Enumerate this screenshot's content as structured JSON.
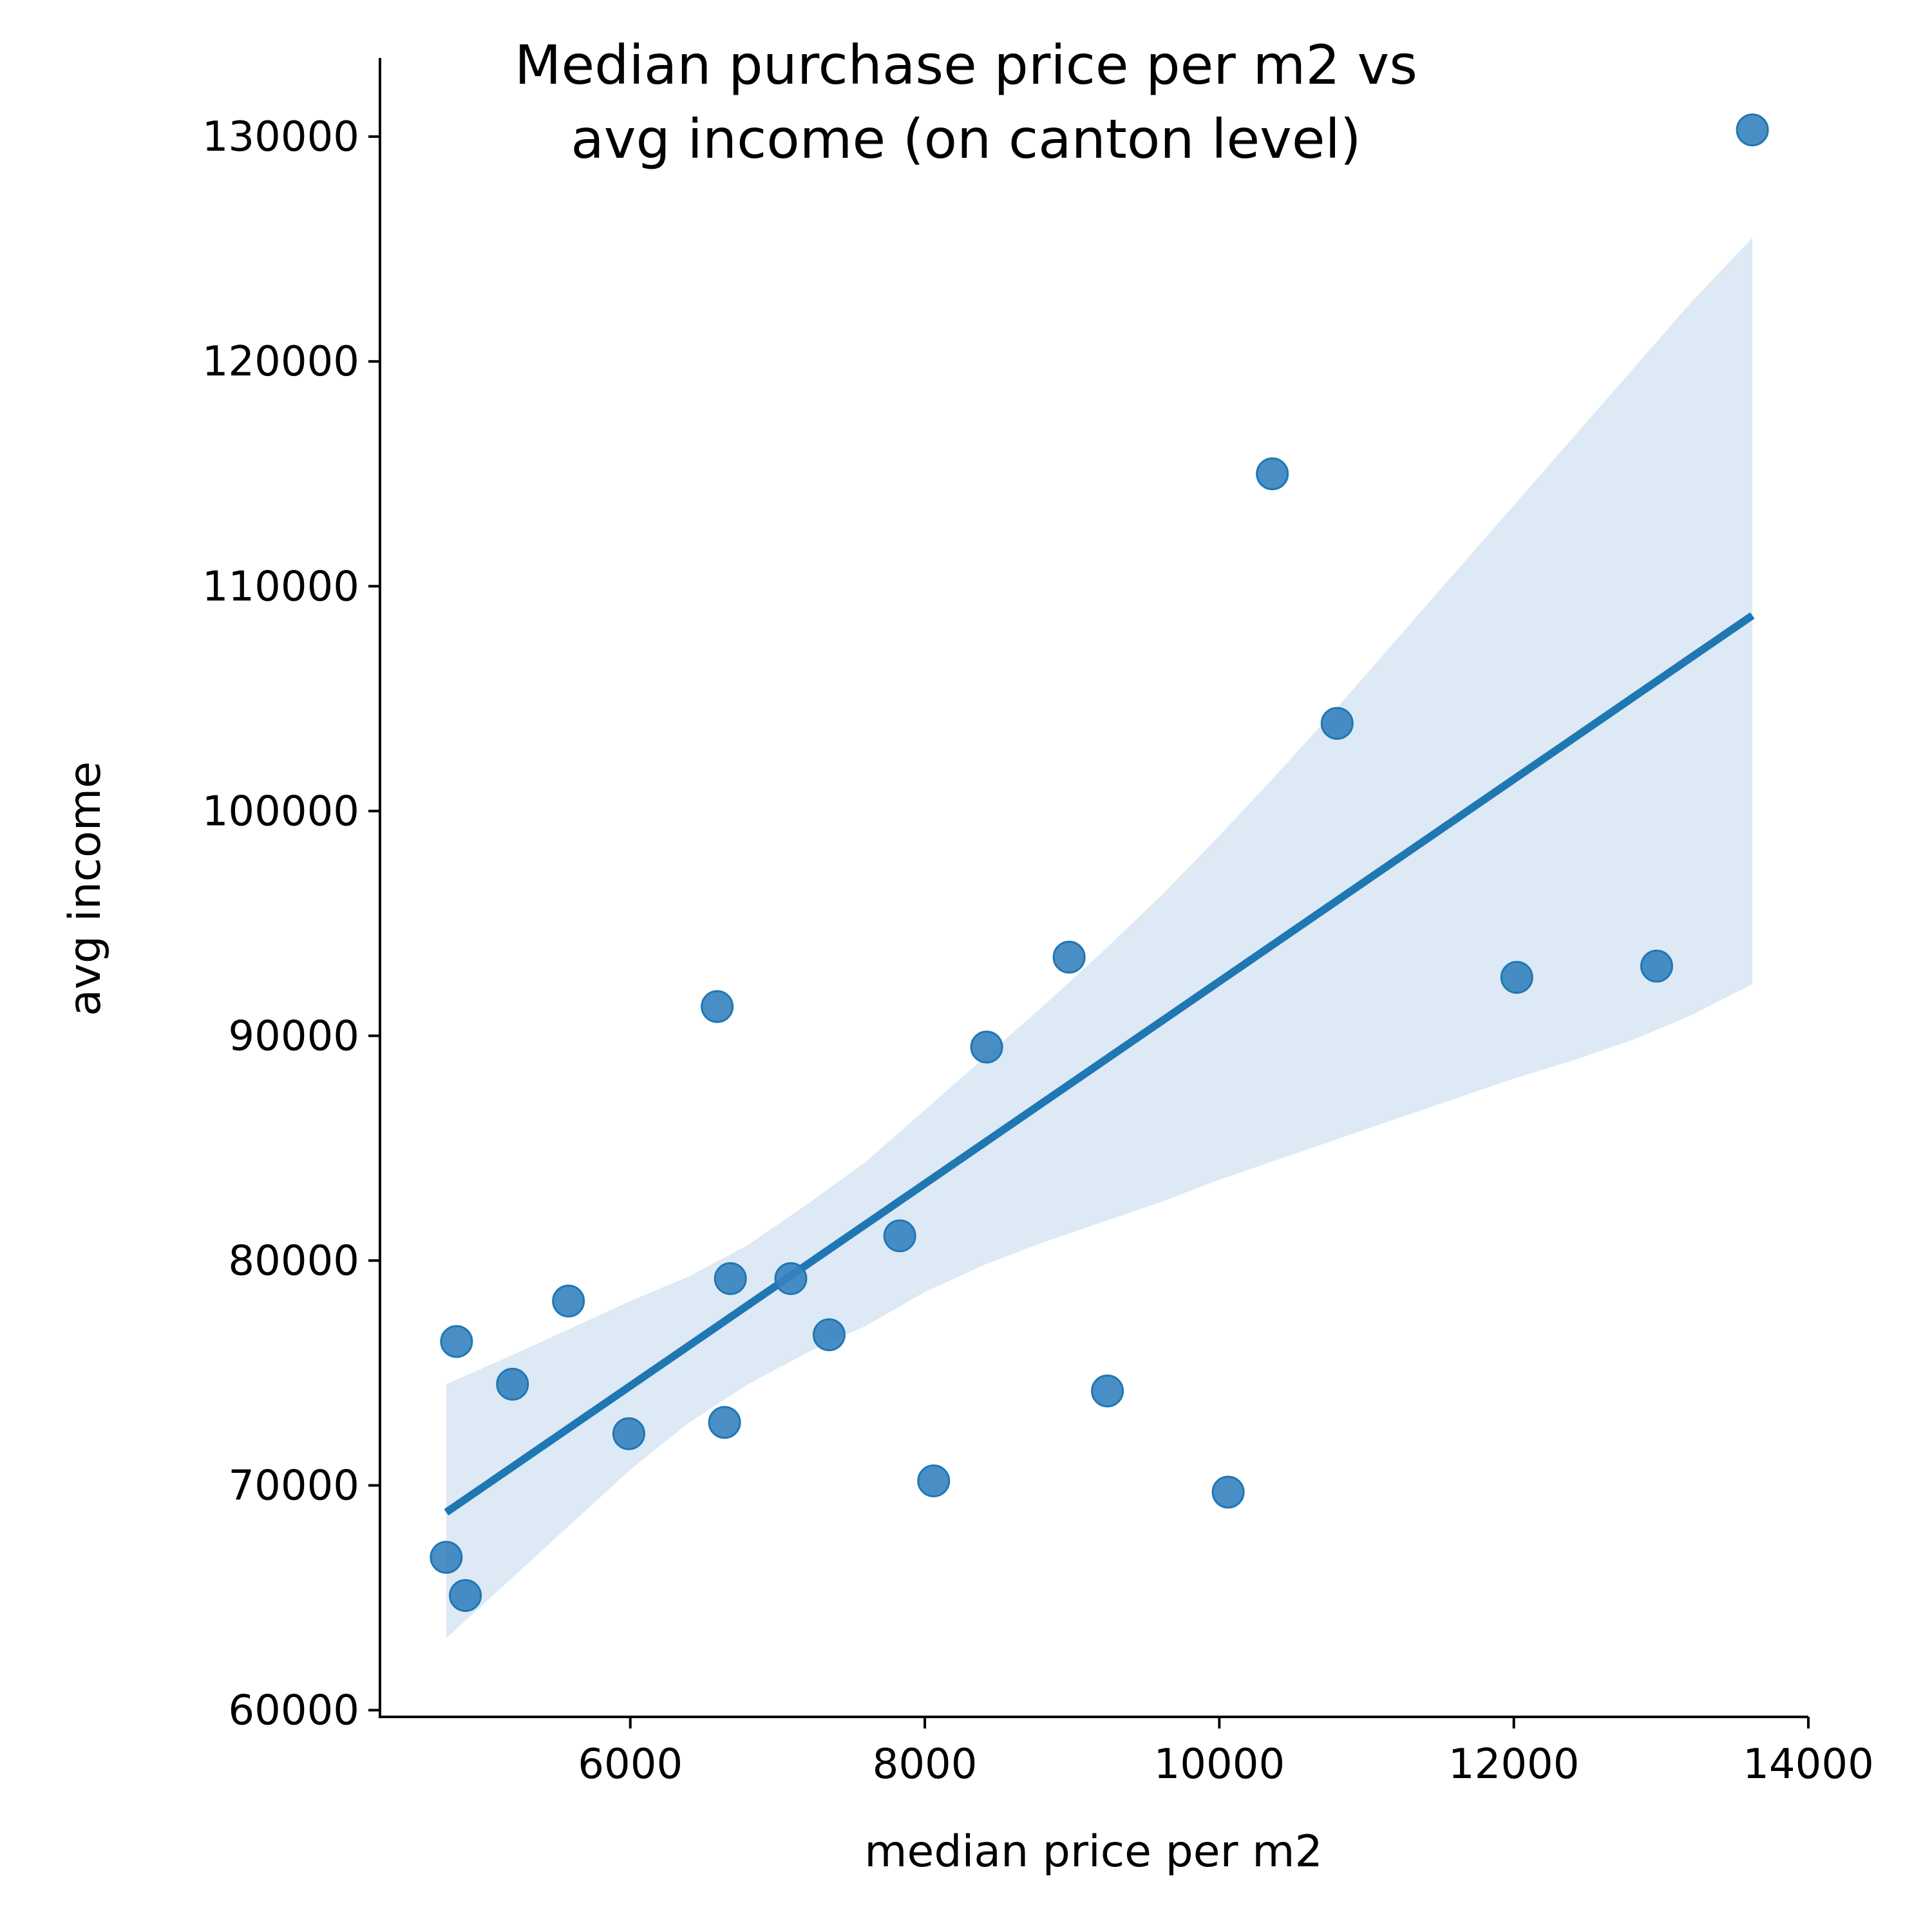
{
  "chart_data": {
    "type": "scatter",
    "title_lines": [
      "Median purchase price per m2 vs",
      "avg income (on canton level)"
    ],
    "xlabel": "median price per m2",
    "ylabel": "avg income",
    "xlim": [
      4300,
      14000
    ],
    "ylim": [
      59700,
      133500
    ],
    "xticks": [
      6000,
      8000,
      10000,
      12000,
      14000
    ],
    "yticks": [
      60000,
      70000,
      80000,
      90000,
      100000,
      110000,
      120000,
      130000
    ],
    "grid": false,
    "legend": "none",
    "colors": {
      "points": "#3582bf",
      "line": "#1f77b4",
      "band": "#dde9f4"
    },
    "points": [
      {
        "x": 4750,
        "y": 66800
      },
      {
        "x": 4880,
        "y": 65100
      },
      {
        "x": 4820,
        "y": 76400
      },
      {
        "x": 5200,
        "y": 74500
      },
      {
        "x": 5580,
        "y": 78200
      },
      {
        "x": 5990,
        "y": 72300
      },
      {
        "x": 6590,
        "y": 91300
      },
      {
        "x": 6640,
        "y": 72800
      },
      {
        "x": 6680,
        "y": 79200
      },
      {
        "x": 7090,
        "y": 79200
      },
      {
        "x": 7350,
        "y": 76700
      },
      {
        "x": 7830,
        "y": 81100
      },
      {
        "x": 8060,
        "y": 70200
      },
      {
        "x": 8420,
        "y": 89500
      },
      {
        "x": 8980,
        "y": 93500
      },
      {
        "x": 9240,
        "y": 74200
      },
      {
        "x": 10060,
        "y": 69700
      },
      {
        "x": 10360,
        "y": 115000
      },
      {
        "x": 10800,
        "y": 103900
      },
      {
        "x": 12020,
        "y": 92600
      },
      {
        "x": 12970,
        "y": 93100
      },
      {
        "x": 13620,
        "y": 130300
      }
    ],
    "regression_line": [
      [
        4750,
        68800
      ],
      [
        13620,
        108700
      ]
    ],
    "confidence_band": {
      "x": [
        4750,
        5200,
        5600,
        6000,
        6400,
        6800,
        7200,
        7600,
        8000,
        8400,
        8800,
        9200,
        9600,
        10000,
        10400,
        10800,
        11200,
        11600,
        12000,
        12400,
        12800,
        13200,
        13620
      ],
      "upper": [
        74500,
        75800,
        77000,
        78200,
        79300,
        80700,
        82500,
        84400,
        86700,
        89000,
        91300,
        93700,
        96200,
        98900,
        101700,
        104600,
        107600,
        110600,
        113600,
        116600,
        119600,
        122600,
        125500
      ],
      "lower": [
        63200,
        65900,
        68300,
        70700,
        72800,
        74500,
        75900,
        77100,
        78600,
        79800,
        80800,
        81700,
        82600,
        83600,
        84500,
        85400,
        86300,
        87200,
        88100,
        88900,
        89800,
        90900,
        92300
      ]
    }
  }
}
